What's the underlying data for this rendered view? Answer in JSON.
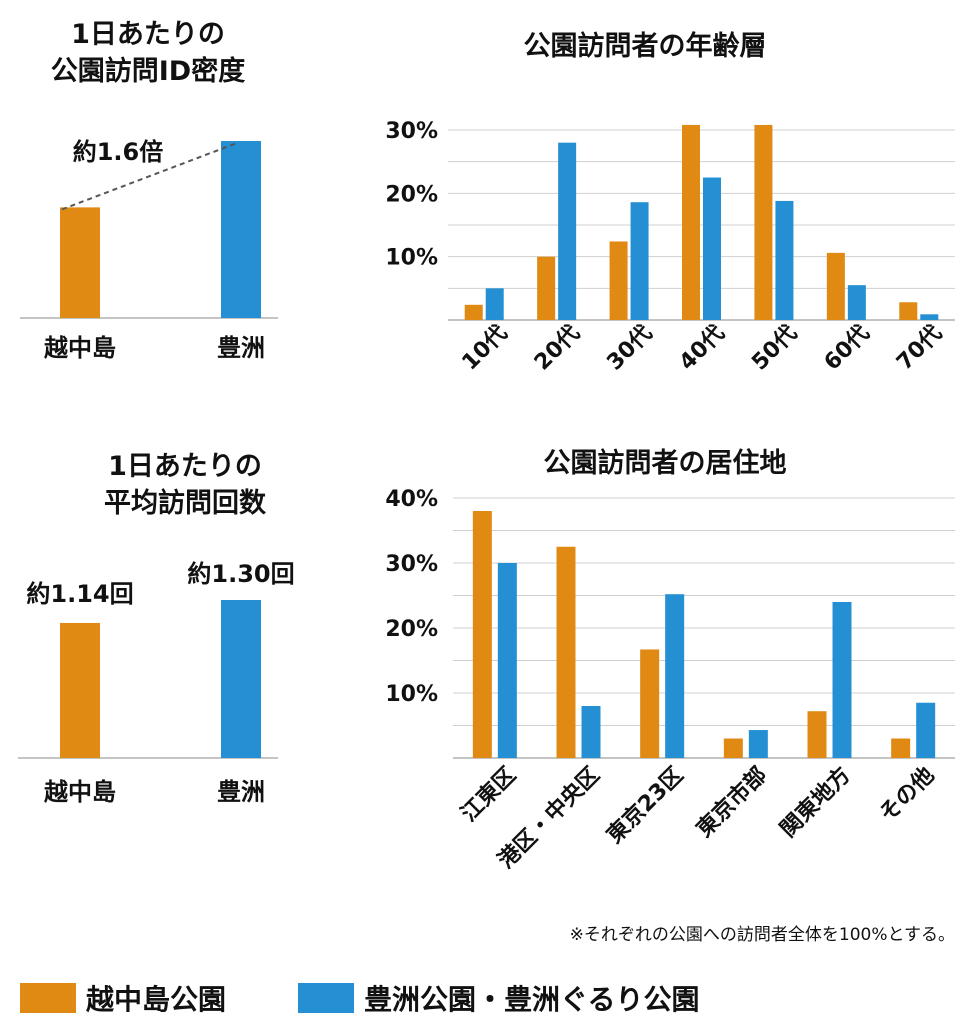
{
  "colors": {
    "kosh": "#e08a14",
    "toyo": "#2490d3",
    "grid": "#d0d0d0",
    "axis": "#b0b0b0"
  },
  "chart_data": [
    {
      "id": "density",
      "type": "bar",
      "title_lines": [
        "1日あたりの",
        "公園訪問ID密度"
      ],
      "categories": [
        "越中島",
        "豊洲"
      ],
      "values": [
        1.0,
        1.6
      ],
      "annotation": "約1.6倍"
    },
    {
      "id": "age",
      "type": "bar",
      "title": "公園訪問者の年齢層",
      "categories": [
        "10代",
        "20代",
        "30代",
        "40代",
        "50代",
        "60代",
        "70代"
      ],
      "ylim": [
        0,
        30
      ],
      "yticks": [
        "10%",
        "20%",
        "30%"
      ],
      "series": [
        {
          "name": "越中島公園",
          "values": [
            2.4,
            10.0,
            12.4,
            30.8,
            30.8,
            10.6,
            2.8
          ]
        },
        {
          "name": "豊洲公園・豊洲ぐるり公園",
          "values": [
            5.0,
            28.0,
            18.6,
            22.5,
            18.8,
            5.5,
            0.9
          ]
        }
      ]
    },
    {
      "id": "visits",
      "type": "bar",
      "title_lines": [
        "1日あたりの",
        "平均訪問回数"
      ],
      "categories": [
        "越中島",
        "豊洲"
      ],
      "values": [
        1.14,
        1.3
      ],
      "value_labels": [
        "約1.14回",
        "約1.30回"
      ]
    },
    {
      "id": "residence",
      "type": "bar",
      "title": "公園訪問者の居住地",
      "categories": [
        "江東区",
        "港区・中央区",
        "東京23区",
        "東京市部",
        "関東地方",
        "その他"
      ],
      "ylim": [
        0,
        40
      ],
      "yticks": [
        "10%",
        "20%",
        "30%",
        "40%"
      ],
      "series": [
        {
          "name": "越中島公園",
          "values": [
            38.0,
            32.5,
            16.7,
            3.0,
            7.2,
            3.0
          ]
        },
        {
          "name": "豊洲公園・豊洲ぐるり公園",
          "values": [
            30.0,
            8.0,
            25.2,
            4.3,
            24.0,
            8.5
          ]
        }
      ]
    }
  ],
  "note": "※それぞれの公園への訪問者全体を100%とする。",
  "legend": [
    {
      "label": "越中島公園",
      "color_key": "kosh"
    },
    {
      "label": "豊洲公園・豊洲ぐるり公園",
      "color_key": "toyo"
    }
  ]
}
